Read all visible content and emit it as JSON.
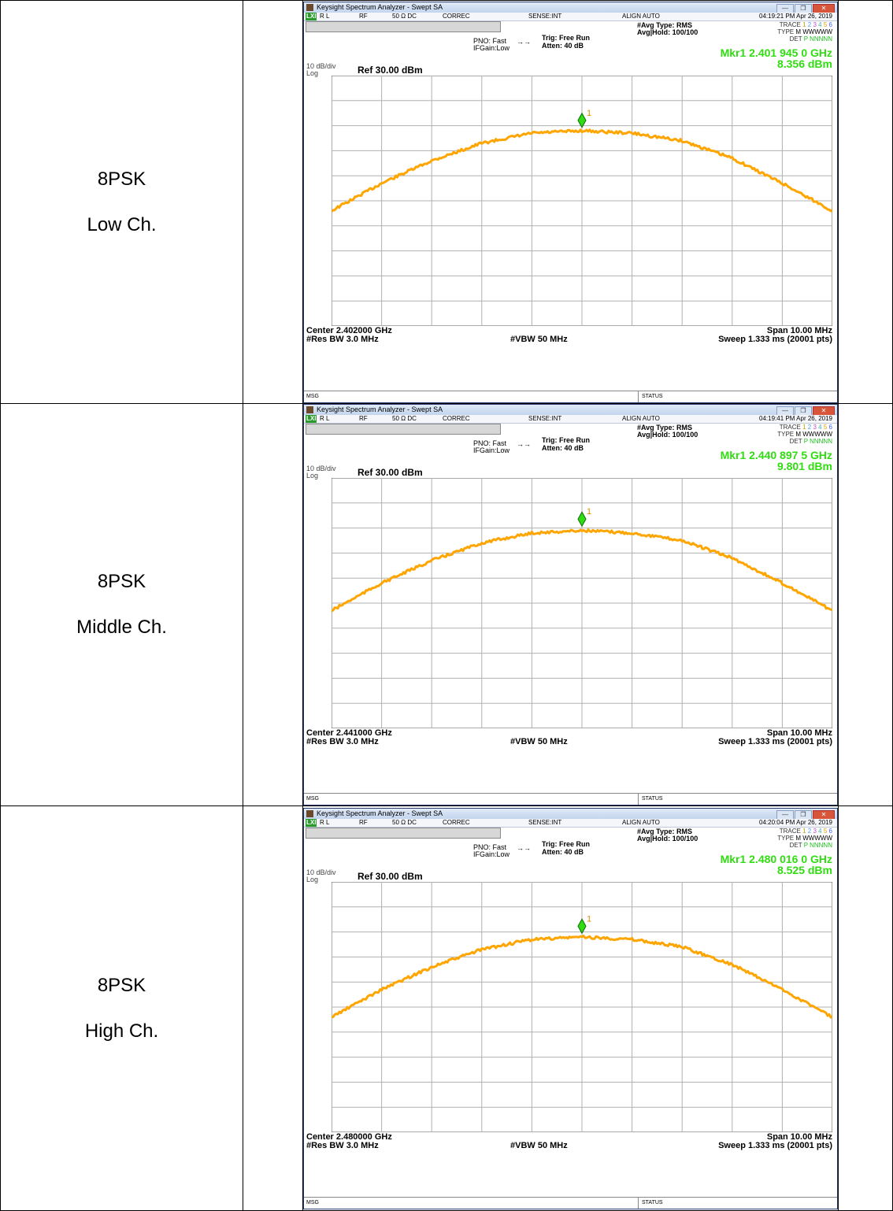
{
  "rows": [
    {
      "mode": "8PSK",
      "channel": "Low Ch.",
      "sa": {
        "title": "Keysight Spectrum Analyzer - Swept SA",
        "menu": {
          "rl": "R L",
          "rf": "RF",
          "imp": "50 Ω  DC",
          "correc": "CORREC",
          "sense": "SENSE:INT",
          "align": "ALIGN AUTO",
          "time": "04:19:21 PM Apr 26, 2019"
        },
        "pno": "PNO: Fast",
        "ifgain": "IFGain:Low",
        "trig": "Trig: Free Run",
        "atten": "Atten: 40 dB",
        "avg_type": "#Avg Type: RMS",
        "avg_hold": "Avg|Hold: 100/100",
        "marker_line1": "Mkr1 2.401 945 0 GHz",
        "marker_line2": "8.356 dBm",
        "scale": "10 dB/div",
        "log": "Log",
        "ref": "Ref 30.00 dBm",
        "center": "Center 2.402000 GHz",
        "res_bw": "#Res BW 3.0 MHz",
        "vbw": "#VBW 50 MHz",
        "span": "Span 10.00 MHz",
        "sweep": "Sweep  1.333 ms (20001 pts)",
        "msg": "MSG",
        "status": "STATUS"
      },
      "chart_data": {
        "type": "line",
        "title": "",
        "ylim": [
          -70,
          30
        ],
        "yticks": [
          "20.0",
          "10.0",
          "0.00",
          "-10.0",
          "-20.0",
          "-30.0",
          "-40.0",
          "-50.0",
          "-60.0"
        ],
        "series": [
          {
            "values": [
              -24,
              -13,
              -4,
              3,
              7,
              8,
              7,
              4,
              -3,
              -13,
              -24
            ]
          }
        ],
        "marker": {
          "label": "1",
          "x_frac": 0.5,
          "y": 8.356
        }
      }
    },
    {
      "mode": "8PSK",
      "channel": "Middle Ch.",
      "sa": {
        "title": "Keysight Spectrum Analyzer - Swept SA",
        "menu": {
          "rl": "R L",
          "rf": "RF",
          "imp": "50 Ω  DC",
          "correc": "CORREC",
          "sense": "SENSE:INT",
          "align": "ALIGN AUTO",
          "time": "04:19:41 PM Apr 26, 2019"
        },
        "pno": "PNO: Fast",
        "ifgain": "IFGain:Low",
        "trig": "Trig: Free Run",
        "atten": "Atten: 40 dB",
        "avg_type": "#Avg Type: RMS",
        "avg_hold": "Avg|Hold: 100/100",
        "marker_line1": "Mkr1 2.440 897 5 GHz",
        "marker_line2": "9.801 dBm",
        "scale": "10 dB/div",
        "log": "Log",
        "ref": "Ref 30.00 dBm",
        "center": "Center 2.441000 GHz",
        "res_bw": "#Res BW 3.0 MHz",
        "vbw": "#VBW 50 MHz",
        "span": "Span 10.00 MHz",
        "sweep": "Sweep  1.333 ms (20001 pts)",
        "msg": "MSG",
        "status": "STATUS"
      },
      "chart_data": {
        "type": "line",
        "title": "",
        "ylim": [
          -70,
          30
        ],
        "yticks": [
          "20.0",
          "10.0",
          "0.00",
          "-10.0",
          "-20.0",
          "-30.0",
          "-40.0",
          "-50.0",
          "-60.0"
        ],
        "series": [
          {
            "values": [
              -23,
              -12,
              -3,
              4,
              8,
              9,
              8,
              5,
              -2,
              -12,
              -23
            ]
          }
        ],
        "marker": {
          "label": "1",
          "x_frac": 0.5,
          "y": 9.801
        }
      }
    },
    {
      "mode": "8PSK",
      "channel": "High Ch.",
      "sa": {
        "title": "Keysight Spectrum Analyzer - Swept SA",
        "menu": {
          "rl": "R L",
          "rf": "RF",
          "imp": "50 Ω  DC",
          "correc": "CORREC",
          "sense": "SENSE:INT",
          "align": "ALIGN AUTO",
          "time": "04:20:04 PM Apr 26, 2019"
        },
        "pno": "PNO: Fast",
        "ifgain": "IFGain:Low",
        "trig": "Trig: Free Run",
        "atten": "Atten: 40 dB",
        "avg_type": "#Avg Type: RMS",
        "avg_hold": "Avg|Hold: 100/100",
        "marker_line1": "Mkr1 2.480 016 0 GHz",
        "marker_line2": "8.525 dBm",
        "scale": "10 dB/div",
        "log": "Log",
        "ref": "Ref 30.00 dBm",
        "center": "Center 2.480000 GHz",
        "res_bw": "#Res BW 3.0 MHz",
        "vbw": "#VBW 50 MHz",
        "span": "Span 10.00 MHz",
        "sweep": "Sweep  1.333 ms (20001 pts)",
        "msg": "MSG",
        "status": "STATUS"
      },
      "chart_data": {
        "type": "line",
        "title": "",
        "ylim": [
          -70,
          30
        ],
        "yticks": [
          "20.0",
          "10.0",
          "0.00",
          "-10.0",
          "-20.0",
          "-30.0",
          "-40.0",
          "-50.0",
          "-60.0"
        ],
        "series": [
          {
            "values": [
              -24,
              -13,
              -4,
              3,
              7,
              8,
              7,
              4,
              -3,
              -13,
              -24
            ]
          }
        ],
        "marker": {
          "label": "1",
          "x_frac": 0.5,
          "y": 8.525
        }
      }
    }
  ],
  "trace_panel": {
    "trace": "TRACE",
    "type": "TYPE",
    "det": "DET",
    "nums": [
      "1",
      "2",
      "3",
      "4",
      "5",
      "6"
    ],
    "type_vals": "M WWWWW",
    "det_vals": "P NNNNN"
  },
  "colors": {
    "trace": "#ffa500",
    "marker": "#30dd10",
    "grid": "#b0b0b0"
  }
}
